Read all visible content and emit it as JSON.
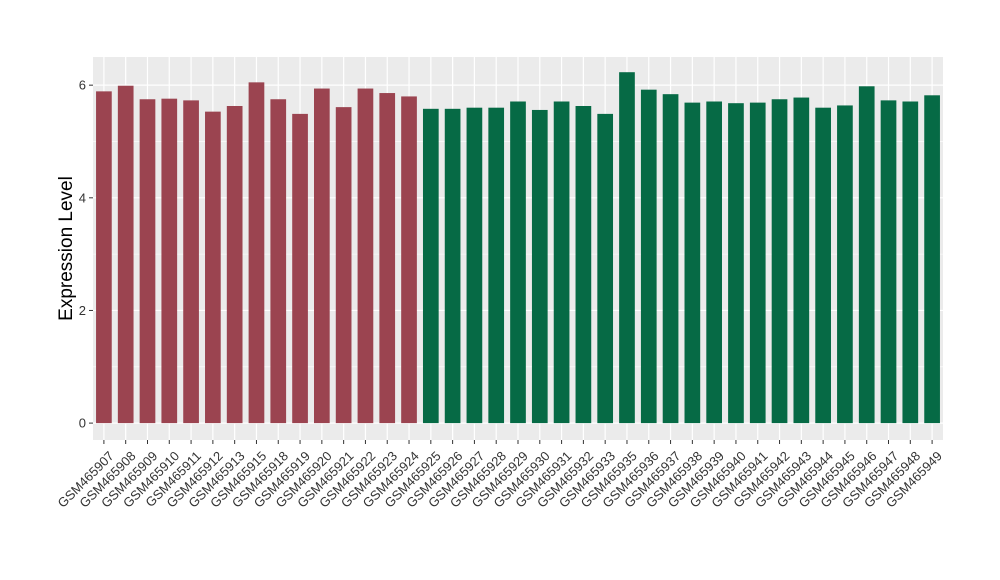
{
  "chart_data": {
    "type": "bar",
    "title": "",
    "xlabel": "",
    "ylabel": "Expression Level",
    "ylim": [
      -0.3,
      6.5
    ],
    "yticks": [
      0,
      2,
      4,
      6
    ],
    "grid": true,
    "legend": "none",
    "categories": [
      "GSM465907",
      "GSM465908",
      "GSM465909",
      "GSM465910",
      "GSM465911",
      "GSM465912",
      "GSM465913",
      "GSM465915",
      "GSM465918",
      "GSM465919",
      "GSM465920",
      "GSM465921",
      "GSM465922",
      "GSM465923",
      "GSM465924",
      "GSM465925",
      "GSM465926",
      "GSM465927",
      "GSM465928",
      "GSM465929",
      "GSM465930",
      "GSM465931",
      "GSM465932",
      "GSM465933",
      "GSM465935",
      "GSM465936",
      "GSM465937",
      "GSM465938",
      "GSM465939",
      "GSM465940",
      "GSM465941",
      "GSM465942",
      "GSM465943",
      "GSM465944",
      "GSM465945",
      "GSM465946",
      "GSM465947",
      "GSM465948",
      "GSM465949"
    ],
    "values": [
      5.89,
      5.99,
      5.75,
      5.76,
      5.73,
      5.53,
      5.63,
      6.05,
      5.75,
      5.49,
      5.94,
      5.61,
      5.94,
      5.86,
      5.8,
      5.58,
      5.58,
      5.6,
      5.6,
      5.71,
      5.56,
      5.71,
      5.63,
      5.49,
      6.23,
      5.92,
      5.84,
      5.69,
      5.71,
      5.68,
      5.69,
      5.75,
      5.78,
      5.6,
      5.64,
      5.98,
      5.73,
      5.71,
      5.82
    ],
    "group_sizes": [
      15,
      24
    ],
    "colors": [
      "#9b4450",
      "#066a45"
    ],
    "panel_background": "#ebebeb",
    "grid_color": "#ffffff"
  }
}
